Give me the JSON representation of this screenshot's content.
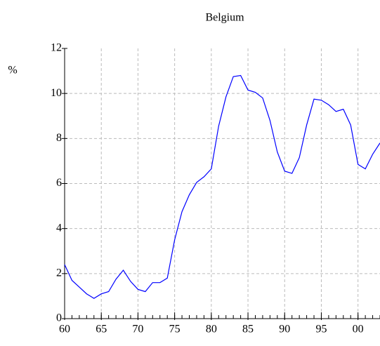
{
  "chart_data": {
    "type": "line",
    "title": "Belgium",
    "y_label": "%",
    "x": [
      60,
      61,
      62,
      63,
      64,
      65,
      66,
      67,
      68,
      69,
      70,
      71,
      72,
      73,
      74,
      75,
      76,
      77,
      78,
      79,
      80,
      81,
      82,
      83,
      84,
      85,
      86,
      87,
      88,
      89,
      90,
      91,
      92,
      93,
      94,
      95,
      96,
      97,
      98,
      99,
      100,
      101,
      102,
      103
    ],
    "series": [
      {
        "name": "Belgium",
        "color": "#0000ff",
        "values": [
          2.4,
          1.7,
          1.4,
          1.1,
          0.9,
          1.1,
          1.2,
          1.75,
          2.15,
          1.65,
          1.3,
          1.2,
          1.6,
          1.6,
          1.8,
          3.5,
          4.75,
          5.5,
          6.05,
          6.3,
          6.65,
          8.55,
          9.85,
          10.75,
          10.8,
          10.15,
          10.05,
          9.8,
          8.8,
          7.4,
          6.55,
          6.45,
          7.15,
          8.6,
          9.75,
          9.7,
          9.5,
          9.2,
          9.3,
          8.6,
          6.85,
          6.65,
          7.3,
          7.8
        ]
      }
    ],
    "xlim": [
      60,
      103
    ],
    "ylim": [
      0,
      12
    ],
    "xticks": [
      60,
      65,
      70,
      75,
      80,
      85,
      90,
      95,
      {
        "value": 100,
        "label": "00"
      }
    ],
    "yticks": [
      0,
      2,
      4,
      6,
      8,
      10,
      12
    ],
    "grid": true
  }
}
